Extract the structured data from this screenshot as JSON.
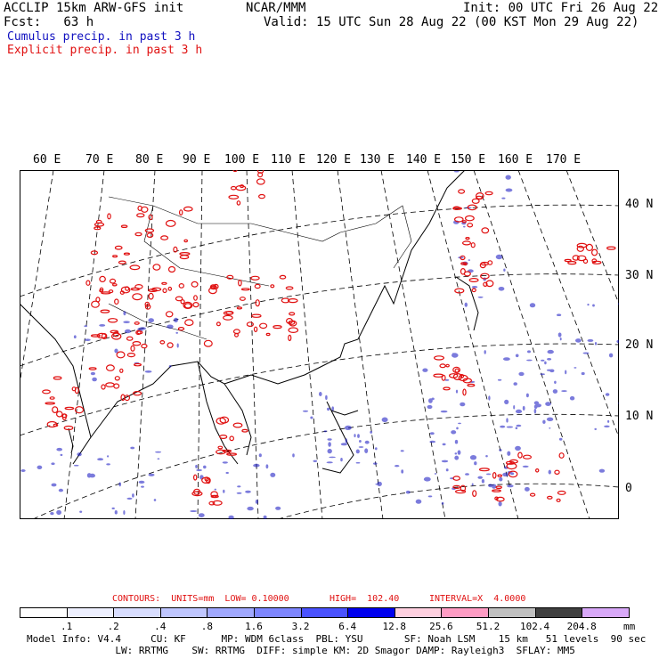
{
  "header": {
    "left1": "ACCLIP 15km ARW-GFS init",
    "left2": "Fcst:   63 h",
    "center": "NCAR/MMM",
    "right1": "Init: 00 UTC Fri 26 Aug 22",
    "right2": "Valid: 15 UTC Sun 28 Aug 22 (00 KST Mon 29 Aug 22)",
    "field1": "Cumulus precip. in past 3 h",
    "field2": "Explicit precip. in past 3 h"
  },
  "colors": {
    "cumulus": "#1010c0",
    "explicit": "#e01010",
    "coast": "#000000"
  },
  "map": {
    "lon_labels": [
      "60 E",
      "70 E",
      "80 E",
      "90 E",
      "100 E",
      "110 E",
      "120 E",
      "130 E",
      "140 E",
      "150 E",
      "160 E",
      "170 E"
    ],
    "lat_labels": [
      "40 N",
      "30 N",
      "20 N",
      "10 N",
      "0"
    ]
  },
  "contours": {
    "label": "CONTOURS:  UNITS=mm  LOW= 0.10000",
    "high": "HIGH=  102.40",
    "interval": "INTERVAL=X  4.0000"
  },
  "colorbar": {
    "labels": [
      ".1",
      ".2",
      ".4",
      ".8",
      "1.6",
      "3.2",
      "6.4",
      "12.8",
      "25.6",
      "51.2",
      "102.4",
      "204.8"
    ],
    "unit": "mm",
    "colors": [
      "#ffffff",
      "#eef0ff",
      "#d8ddff",
      "#bfc6ff",
      "#a0a8ff",
      "#7e86ff",
      "#4a52ff",
      "#0000ee",
      "#ffd0e0",
      "#ff9cc4",
      "#c0c0c0",
      "#404040",
      "#d8a8f8"
    ]
  },
  "footer": {
    "line1": "Model Info: V4.4     CU: KF      MP: WDM 6class  PBL: YSU       SF: Noah LSM    15 km   51 levels  90 sec",
    "line2": "               LW: RRTMG    SW: RRTMG  DIFF: simple KM: 2D Smagor DAMP: Rayleigh3  SFLAY: MM5"
  }
}
